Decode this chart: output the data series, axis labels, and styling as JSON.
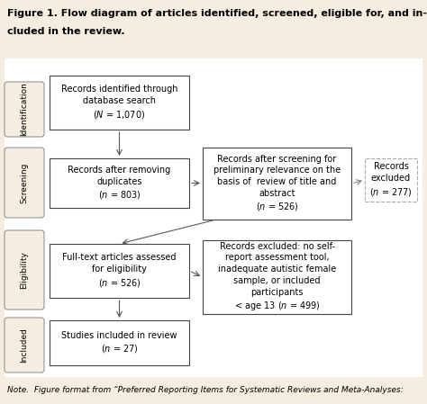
{
  "title_line1": "Figure 1. Flow diagram of articles identified, screened, eligible for, and in-",
  "title_line2": "cluded in the review.",
  "background_color": "#f5ede0",
  "diagram_bg": "#ffffff",
  "note_text": "Note.  Figure format from “Preferred Reporting Items for Systematic Reviews and Meta-Analyses:",
  "stages": [
    "Identification",
    "Screening",
    "Eligibility",
    "Included"
  ],
  "font_size_box": 7.0,
  "font_size_stage": 6.5,
  "font_size_title": 8.0,
  "font_size_note": 6.5
}
